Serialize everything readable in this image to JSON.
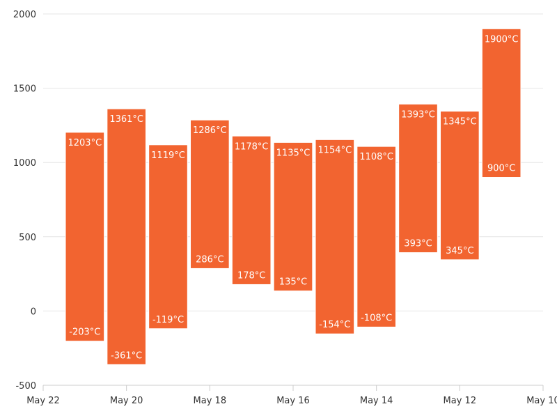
{
  "chart_data": {
    "type": "columnrange",
    "title": "",
    "xlabel": "",
    "ylabel": "",
    "color": "#f26430",
    "ylim": [
      -500,
      2000
    ],
    "yticks": [
      -500,
      0,
      500,
      1000,
      1500,
      2000
    ],
    "xlim": [
      "May 22",
      "May 10"
    ],
    "xaxis_reversed": true,
    "xticks": [
      "May 22",
      "May 20",
      "May 18",
      "May 16",
      "May 14",
      "May 12",
      "May 10"
    ],
    "unit": "°C",
    "grid": true,
    "legend": "none",
    "data": [
      {
        "x": "May 21",
        "low": -203,
        "high": 1203
      },
      {
        "x": "May 20",
        "low": -361,
        "high": 1361
      },
      {
        "x": "May 19",
        "low": -119,
        "high": 1119
      },
      {
        "x": "May 18",
        "low": 286,
        "high": 1286
      },
      {
        "x": "May 17",
        "low": 178,
        "high": 1178
      },
      {
        "x": "May 16",
        "low": 135,
        "high": 1135
      },
      {
        "x": "May 15",
        "low": -154,
        "high": 1154
      },
      {
        "x": "May 14",
        "low": -108,
        "high": 1108
      },
      {
        "x": "May 13",
        "low": 393,
        "high": 1393
      },
      {
        "x": "May 12",
        "low": 345,
        "high": 1345
      },
      {
        "x": "May 11",
        "low": 900,
        "high": 1900
      }
    ]
  }
}
